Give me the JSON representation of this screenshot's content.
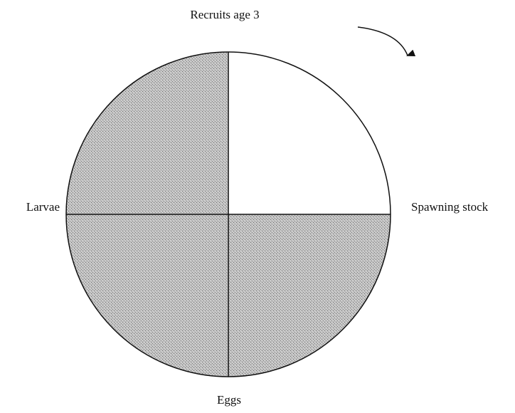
{
  "nodes": [
    {
      "label": "Recruits age 3"
    },
    {
      "label": "Spawning stock"
    },
    {
      "label": "Eggs"
    },
    {
      "label": "Larvae"
    }
  ]
}
